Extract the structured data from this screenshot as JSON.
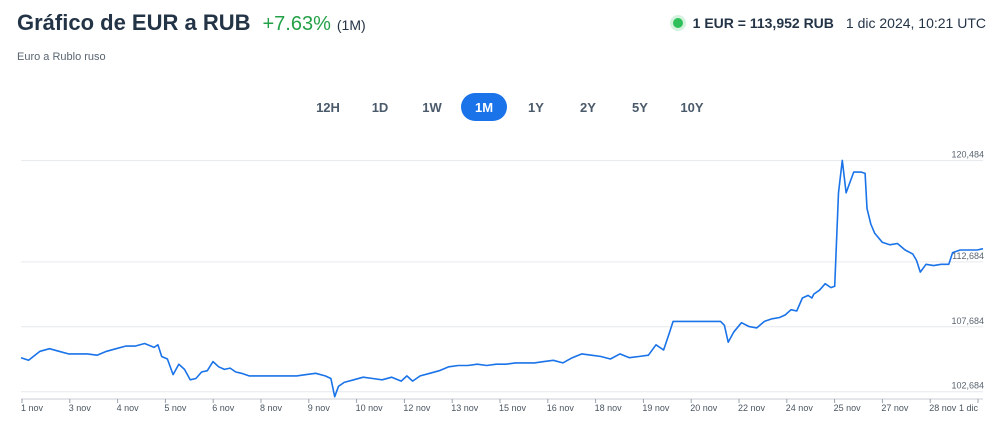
{
  "header": {
    "title": "Gráfico de EUR a RUB",
    "change": "+7.63%",
    "period": "(1M)",
    "subtitle": "Euro a Rublo ruso"
  },
  "rate": {
    "value": "1 EUR = 113,952 RUB",
    "timestamp": "1 dic 2024, 10:21 UTC"
  },
  "tabs": [
    {
      "label": "12H",
      "active": false
    },
    {
      "label": "1D",
      "active": false
    },
    {
      "label": "1W",
      "active": false
    },
    {
      "label": "1M",
      "active": true
    },
    {
      "label": "1Y",
      "active": false
    },
    {
      "label": "2Y",
      "active": false
    },
    {
      "label": "5Y",
      "active": false
    },
    {
      "label": "10Y",
      "active": false
    }
  ],
  "colors": {
    "line": "#1a73e8",
    "positive": "#24a148",
    "grid": "#e6e9ed"
  },
  "chart_data": {
    "type": "line",
    "title": "",
    "xlabel": "",
    "ylabel": "",
    "ylim": [
      102.2,
      121.3
    ],
    "y_ticks": [
      {
        "value": 102.684,
        "label": "102,684"
      },
      {
        "value": 107.684,
        "label": "107,684"
      },
      {
        "value": 112.684,
        "label": "112,684"
      },
      {
        "value": 120.484,
        "label": "120,484"
      }
    ],
    "x_ticks": [
      "1 nov",
      "3 nov",
      "4 nov",
      "5 nov",
      "6 nov",
      "8 nov",
      "9 nov",
      "10 nov",
      "12 nov",
      "13 nov",
      "15 nov",
      "16 nov",
      "18 nov",
      "19 nov",
      "20 nov",
      "22 nov",
      "24 nov",
      "25 nov",
      "27 nov",
      "28 nov",
      "1 dic"
    ],
    "grid": true,
    "series": [
      {
        "points": [
          [
            0.0,
            105.3
          ],
          [
            0.4,
            105.1
          ],
          [
            1.0,
            105.8
          ],
          [
            1.5,
            106.0
          ],
          [
            2.0,
            105.8
          ],
          [
            2.5,
            105.6
          ],
          [
            3.0,
            105.6
          ],
          [
            3.5,
            105.6
          ],
          [
            4.0,
            105.5
          ],
          [
            4.5,
            105.8
          ],
          [
            5.0,
            106.0
          ],
          [
            5.5,
            106.2
          ],
          [
            6.0,
            106.2
          ],
          [
            6.5,
            106.4
          ],
          [
            7.0,
            106.1
          ],
          [
            7.2,
            106.3
          ],
          [
            7.4,
            105.4
          ],
          [
            7.7,
            105.2
          ],
          [
            8.0,
            104.0
          ],
          [
            8.3,
            104.8
          ],
          [
            8.6,
            104.4
          ],
          [
            8.9,
            103.6
          ],
          [
            9.2,
            103.7
          ],
          [
            9.5,
            104.2
          ],
          [
            9.8,
            104.3
          ],
          [
            10.1,
            105.0
          ],
          [
            10.4,
            104.6
          ],
          [
            10.7,
            104.4
          ],
          [
            11.0,
            104.5
          ],
          [
            11.3,
            104.2
          ],
          [
            11.6,
            104.1
          ],
          [
            12.0,
            103.9
          ],
          [
            12.5,
            103.9
          ],
          [
            13.0,
            103.9
          ],
          [
            13.5,
            103.9
          ],
          [
            14.0,
            103.9
          ],
          [
            14.5,
            103.9
          ],
          [
            15.0,
            104.0
          ],
          [
            15.5,
            104.1
          ],
          [
            16.0,
            103.9
          ],
          [
            16.3,
            103.7
          ],
          [
            16.5,
            102.3
          ],
          [
            16.7,
            103.1
          ],
          [
            17.0,
            103.4
          ],
          [
            17.5,
            103.6
          ],
          [
            18.0,
            103.8
          ],
          [
            18.5,
            103.7
          ],
          [
            19.0,
            103.6
          ],
          [
            19.5,
            103.8
          ],
          [
            20.0,
            103.5
          ],
          [
            20.3,
            103.9
          ],
          [
            20.6,
            103.5
          ],
          [
            21.0,
            103.9
          ],
          [
            21.5,
            104.1
          ],
          [
            22.0,
            104.3
          ],
          [
            22.5,
            104.6
          ],
          [
            23.0,
            104.7
          ],
          [
            23.5,
            104.7
          ],
          [
            24.0,
            104.8
          ],
          [
            24.5,
            104.7
          ],
          [
            25.0,
            104.8
          ],
          [
            25.5,
            104.8
          ],
          [
            26.0,
            104.9
          ],
          [
            26.5,
            104.9
          ],
          [
            27.0,
            104.9
          ],
          [
            27.5,
            105.0
          ],
          [
            28.0,
            105.1
          ],
          [
            28.5,
            104.9
          ],
          [
            29.0,
            105.3
          ],
          [
            29.5,
            105.6
          ],
          [
            30.0,
            105.5
          ],
          [
            30.5,
            105.4
          ],
          [
            31.0,
            105.2
          ],
          [
            31.5,
            105.6
          ],
          [
            32.0,
            105.3
          ],
          [
            32.5,
            105.4
          ],
          [
            33.0,
            105.5
          ],
          [
            33.4,
            106.3
          ],
          [
            33.8,
            105.9
          ],
          [
            34.1,
            107.2
          ],
          [
            34.3,
            108.1
          ],
          [
            35.0,
            108.1
          ],
          [
            36.0,
            108.1
          ],
          [
            36.8,
            108.1
          ],
          [
            37.0,
            107.8
          ],
          [
            37.2,
            106.5
          ],
          [
            37.5,
            107.3
          ],
          [
            37.9,
            108.0
          ],
          [
            38.3,
            107.7
          ],
          [
            38.7,
            107.6
          ],
          [
            39.1,
            108.1
          ],
          [
            39.5,
            108.3
          ],
          [
            39.9,
            108.4
          ],
          [
            40.2,
            108.6
          ],
          [
            40.5,
            109.0
          ],
          [
            40.8,
            108.9
          ],
          [
            41.1,
            109.9
          ],
          [
            41.4,
            110.1
          ],
          [
            41.6,
            109.9
          ],
          [
            41.7,
            110.2
          ],
          [
            42.0,
            110.5
          ],
          [
            42.3,
            111.0
          ],
          [
            42.6,
            110.7
          ],
          [
            42.8,
            110.8
          ],
          [
            43.0,
            118.0
          ],
          [
            43.2,
            120.5
          ],
          [
            43.4,
            118.0
          ],
          [
            43.8,
            119.6
          ],
          [
            44.2,
            119.6
          ],
          [
            44.4,
            119.5
          ],
          [
            44.5,
            116.8
          ],
          [
            44.7,
            115.6
          ],
          [
            44.9,
            114.9
          ],
          [
            45.3,
            114.2
          ],
          [
            45.7,
            114.0
          ],
          [
            46.1,
            114.1
          ],
          [
            46.5,
            113.6
          ],
          [
            46.9,
            113.3
          ],
          [
            47.1,
            112.8
          ],
          [
            47.3,
            111.9
          ],
          [
            47.6,
            112.5
          ],
          [
            48.0,
            112.4
          ],
          [
            48.4,
            112.5
          ],
          [
            48.8,
            112.5
          ],
          [
            49.0,
            113.4
          ],
          [
            49.4,
            113.6
          ],
          [
            49.9,
            113.6
          ],
          [
            50.3,
            113.6
          ],
          [
            50.6,
            113.7
          ]
        ]
      }
    ]
  }
}
